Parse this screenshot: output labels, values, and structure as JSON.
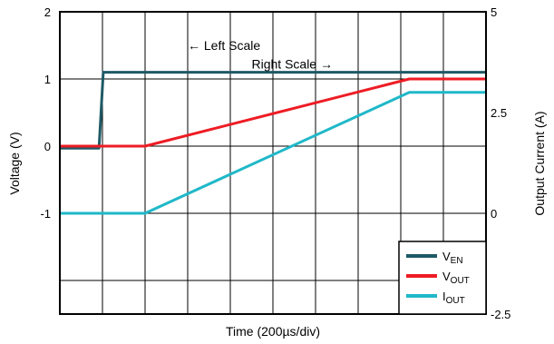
{
  "chart_data": {
    "type": "line",
    "title": "",
    "xlabel": "Time (200µs/div)",
    "ylabel_left": "Voltage (V)",
    "ylabel_right": "Output Current (A)",
    "x_divisions": 10,
    "grid": true,
    "left_axis": {
      "ylim": [
        -2.5,
        2
      ],
      "ticks": [
        {
          "value": 2,
          "label": "2"
        },
        {
          "value": 1,
          "label": "1"
        },
        {
          "value": 0,
          "label": "0"
        },
        {
          "value": -1,
          "label": "-1"
        }
      ]
    },
    "right_axis": {
      "ylim": [
        -2.5,
        5
      ],
      "ticks": [
        {
          "value": 5,
          "label": "5"
        },
        {
          "value": 2.5,
          "label": "2.5"
        },
        {
          "value": 0,
          "label": "0"
        },
        {
          "value": -2.5,
          "label": "-2.5"
        }
      ]
    },
    "series": [
      {
        "name": "V",
        "subscript": "EN",
        "axis": "left",
        "color": "#1e5a66",
        "x": [
          0,
          0.92,
          1.02,
          10
        ],
        "y": [
          -0.03,
          -0.03,
          1.1,
          1.1
        ]
      },
      {
        "name": "V",
        "subscript": "OUT",
        "axis": "left",
        "color": "#ee1c24",
        "x": [
          0,
          2,
          8.2,
          10
        ],
        "y": [
          0,
          0,
          1.0,
          1.0
        ]
      },
      {
        "name": "I",
        "subscript": "OUT",
        "axis": "right",
        "color": "#1fb8c8",
        "x": [
          0,
          2,
          8.2,
          10
        ],
        "y": [
          0,
          0,
          3.0,
          3.0
        ]
      }
    ],
    "annotations": [
      {
        "text": "← Left Scale",
        "x": 3.0,
        "y": 1.5,
        "axis": "left"
      },
      {
        "text": "Right Scale →",
        "x": 4.5,
        "y": 3.7,
        "axis": "right"
      }
    ],
    "legend": {
      "placement": "bottom-right"
    }
  }
}
